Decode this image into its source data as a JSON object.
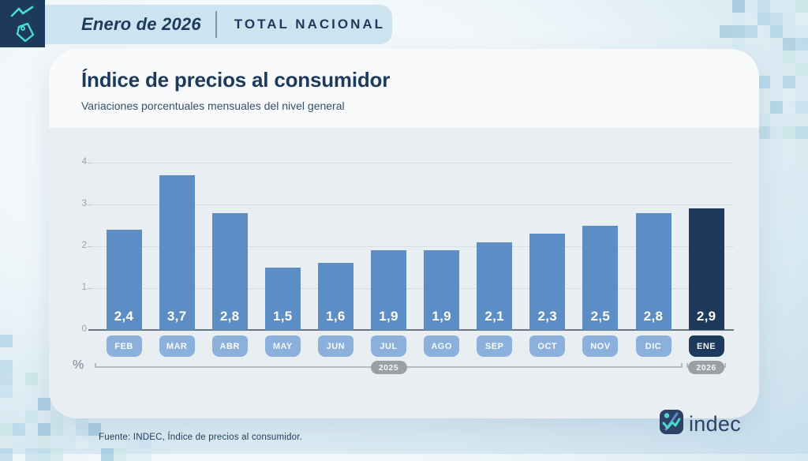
{
  "header": {
    "period": "Enero de 2026",
    "scope": "TOTAL NACIONAL"
  },
  "card": {
    "title": "Índice de precios al consumidor",
    "subtitle": "Variaciones porcentuales mensuales del nivel general"
  },
  "chart_data": {
    "type": "bar",
    "title": "Índice de precios al consumidor",
    "subtitle": "Variaciones porcentuales mensuales del nivel general",
    "categories": [
      "FEB",
      "MAR",
      "ABR",
      "MAY",
      "JUN",
      "JUL",
      "AGO",
      "SEP",
      "OCT",
      "NOV",
      "DIC",
      "ENE"
    ],
    "values": [
      2.4,
      3.7,
      2.8,
      1.5,
      1.6,
      1.9,
      1.9,
      2.1,
      2.3,
      2.5,
      2.8,
      2.9
    ],
    "value_labels": [
      "2,4",
      "3,7",
      "2,8",
      "1,5",
      "1,6",
      "1,9",
      "1,9",
      "2,1",
      "2,3",
      "2,5",
      "2,8",
      "2,9"
    ],
    "highlight_index": 11,
    "unit_label": "%",
    "ylim": [
      0,
      4
    ],
    "yticks": [
      0,
      1,
      2,
      3,
      4
    ],
    "grid": true,
    "legend": "none",
    "year_groups": [
      {
        "label": "2025",
        "start": "FEB",
        "end": "DIC"
      },
      {
        "label": "2026",
        "start": "ENE",
        "end": "ENE"
      }
    ],
    "bar_color": "#5c8dc5",
    "highlight_color": "#1d3a5c"
  },
  "footer": {
    "source": "Fuente: INDEC, Índice de precios al consumidor.",
    "brand": "indec"
  },
  "colors": {
    "navy": "#1d3a5c",
    "teal": "#49dfd0",
    "header_bg": "#cde3f0",
    "bar_blue": "#5c8dc5",
    "pill_blue": "#8bb0dc",
    "chart_bg": "#e9eef3"
  }
}
